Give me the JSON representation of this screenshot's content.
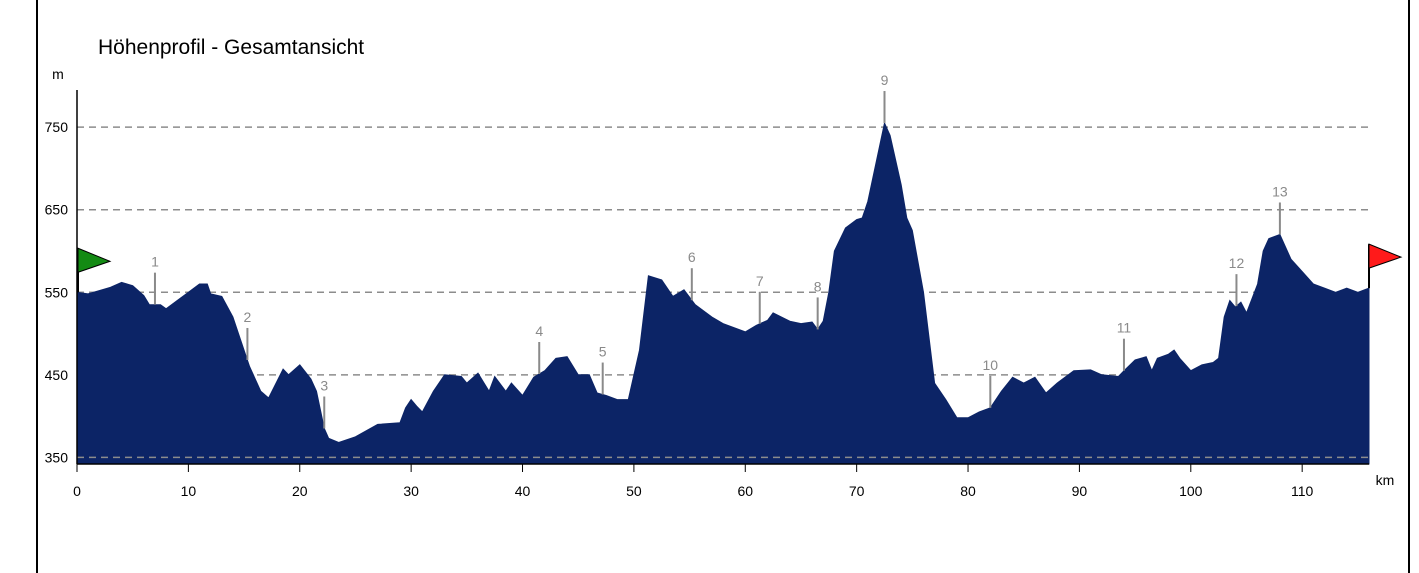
{
  "chart_data": {
    "type": "area",
    "title": "Höhenprofil - Gesamtansicht",
    "ylabel": "m",
    "xlabel": "km",
    "xlim": [
      0,
      116
    ],
    "ylim": [
      342,
      795
    ],
    "x_ticks": [
      0,
      10,
      20,
      30,
      40,
      50,
      60,
      70,
      80,
      90,
      100,
      110
    ],
    "y_ticks": [
      350,
      450,
      550,
      650,
      750
    ],
    "grid": true,
    "colors": {
      "fill": "#0c2466",
      "grid": "#8c8c8c",
      "marker": "#8a8a8a",
      "start_flag": "#138a13",
      "end_flag": "#ff1a1a"
    },
    "series": [
      {
        "values": [
          [
            0,
            550
          ],
          [
            1,
            548
          ],
          [
            2,
            552
          ],
          [
            3,
            556
          ],
          [
            4,
            562
          ],
          [
            5,
            558
          ],
          [
            6,
            546
          ],
          [
            6.5,
            535
          ],
          [
            7.5,
            535
          ],
          [
            8,
            530
          ],
          [
            9,
            540
          ],
          [
            10,
            550
          ],
          [
            11,
            560
          ],
          [
            11.7,
            560
          ],
          [
            12,
            548
          ],
          [
            13,
            545
          ],
          [
            14,
            520
          ],
          [
            14.5,
            500
          ],
          [
            15.5,
            460
          ],
          [
            16.5,
            430
          ],
          [
            17.2,
            422
          ],
          [
            18.5,
            457
          ],
          [
            19,
            450
          ],
          [
            20,
            462
          ],
          [
            21,
            445
          ],
          [
            21.5,
            430
          ],
          [
            22.2,
            385
          ],
          [
            22.6,
            373
          ],
          [
            23.5,
            368
          ],
          [
            25,
            375
          ],
          [
            27,
            390
          ],
          [
            29,
            392
          ],
          [
            29.5,
            410
          ],
          [
            30,
            420
          ],
          [
            30.5,
            412
          ],
          [
            31,
            405
          ],
          [
            32,
            430
          ],
          [
            33,
            450
          ],
          [
            34.5,
            448
          ],
          [
            35,
            440
          ],
          [
            36,
            452
          ],
          [
            37,
            430
          ],
          [
            37.5,
            448
          ],
          [
            38.5,
            430
          ],
          [
            39,
            440
          ],
          [
            40,
            425
          ],
          [
            41,
            447
          ],
          [
            42,
            455
          ],
          [
            43,
            470
          ],
          [
            44,
            472
          ],
          [
            45,
            450
          ],
          [
            46,
            450
          ],
          [
            46.7,
            428
          ],
          [
            47.5,
            425
          ],
          [
            48.5,
            420
          ],
          [
            49.5,
            420
          ],
          [
            50.5,
            480
          ],
          [
            51.3,
            570
          ],
          [
            52.5,
            565
          ],
          [
            53.5,
            545
          ],
          [
            54.5,
            553
          ],
          [
            55.5,
            535
          ],
          [
            57,
            520
          ],
          [
            58,
            512
          ],
          [
            60,
            502
          ],
          [
            61,
            510
          ],
          [
            62,
            516
          ],
          [
            62.5,
            525
          ],
          [
            64,
            515
          ],
          [
            65,
            512
          ],
          [
            66,
            514
          ],
          [
            66.5,
            505
          ],
          [
            67,
            515
          ],
          [
            67.5,
            550
          ],
          [
            68,
            600
          ],
          [
            69,
            628
          ],
          [
            70,
            638
          ],
          [
            70.5,
            640
          ],
          [
            71,
            660
          ],
          [
            72.5,
            755
          ],
          [
            73,
            740
          ],
          [
            74,
            680
          ],
          [
            74.5,
            640
          ],
          [
            75,
            625
          ],
          [
            76,
            550
          ],
          [
            77,
            440
          ],
          [
            78,
            420
          ],
          [
            79,
            398
          ],
          [
            80,
            398
          ],
          [
            81,
            405
          ],
          [
            82,
            410
          ],
          [
            83,
            430
          ],
          [
            84,
            447
          ],
          [
            85,
            440
          ],
          [
            86,
            447
          ],
          [
            87,
            428
          ],
          [
            88,
            440
          ],
          [
            89.5,
            455
          ],
          [
            91,
            456
          ],
          [
            92,
            450
          ],
          [
            93.5,
            448
          ],
          [
            94,
            455
          ],
          [
            95,
            468
          ],
          [
            96,
            472
          ],
          [
            96.5,
            455
          ],
          [
            97,
            470
          ],
          [
            98,
            475
          ],
          [
            98.5,
            480
          ],
          [
            99,
            470
          ],
          [
            100,
            455
          ],
          [
            101,
            462
          ],
          [
            102,
            465
          ],
          [
            102.5,
            470
          ],
          [
            103,
            520
          ],
          [
            103.5,
            540
          ],
          [
            104,
            532
          ],
          [
            104.5,
            538
          ],
          [
            105,
            525
          ],
          [
            106,
            560
          ],
          [
            106.5,
            600
          ],
          [
            107,
            615
          ],
          [
            108,
            620
          ],
          [
            109,
            590
          ],
          [
            110,
            575
          ],
          [
            111,
            560
          ],
          [
            112,
            555
          ],
          [
            113,
            550
          ],
          [
            114,
            555
          ],
          [
            115,
            550
          ],
          [
            116,
            555
          ]
        ]
      }
    ],
    "markers": [
      {
        "label": "1",
        "km": 7
      },
      {
        "label": "2",
        "km": 15.3
      },
      {
        "label": "3",
        "km": 22.2
      },
      {
        "label": "4",
        "km": 41.5
      },
      {
        "label": "5",
        "km": 47.2
      },
      {
        "label": "6",
        "km": 55.2
      },
      {
        "label": "7",
        "km": 61.3
      },
      {
        "label": "8",
        "km": 66.5
      },
      {
        "label": "9",
        "km": 72.5
      },
      {
        "label": "10",
        "km": 82
      },
      {
        "label": "11",
        "km": 94
      },
      {
        "label": "12",
        "km": 104.1
      },
      {
        "label": "13",
        "km": 108
      }
    ]
  }
}
